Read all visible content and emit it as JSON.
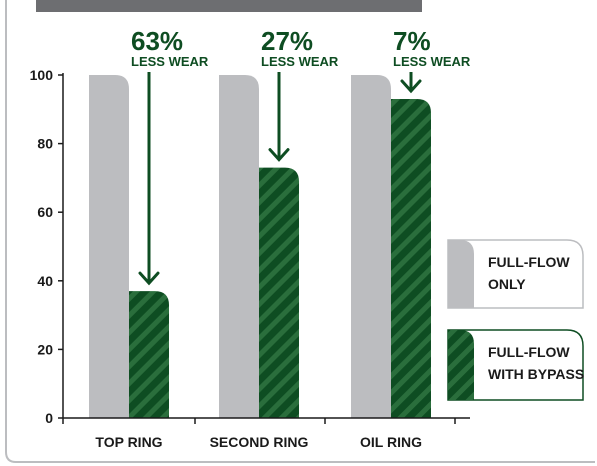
{
  "chart_data": {
    "type": "bar",
    "categories": [
      "TOP RING",
      "SECOND RING",
      "OIL RING"
    ],
    "series": [
      {
        "name": "FULL-FLOW ONLY",
        "values": [
          100,
          100,
          100
        ],
        "color": "#bcbdc0"
      },
      {
        "name": "FULL-FLOW WITH BYPASS",
        "values": [
          37,
          73,
          93
        ],
        "color": "#0e4d22",
        "stripe_color": "#2a6e3c"
      }
    ],
    "annotations": [
      {
        "category": "TOP RING",
        "percent": "63%",
        "text": "LESS WEAR"
      },
      {
        "category": "SECOND RING",
        "percent": "27%",
        "text": "LESS WEAR"
      },
      {
        "category": "OIL RING",
        "percent": "7%",
        "text": "LESS WEAR"
      }
    ],
    "ylim": [
      0,
      100
    ],
    "yticks": [
      0,
      20,
      40,
      60,
      80,
      100
    ],
    "legend": {
      "placement": "right",
      "items": [
        {
          "series": "FULL-FLOW ONLY",
          "lines": [
            "FULL-FLOW",
            "ONLY"
          ]
        },
        {
          "series": "FULL-FLOW WITH BYPASS",
          "lines": [
            "FULL-FLOW",
            "WITH BYPASS"
          ]
        }
      ]
    },
    "grid": false,
    "colors": {
      "axis": "#1a1a1a",
      "annotation": "#0e4d22",
      "top_banner": "#6d6e71",
      "frame": "#bcbdc0"
    }
  }
}
